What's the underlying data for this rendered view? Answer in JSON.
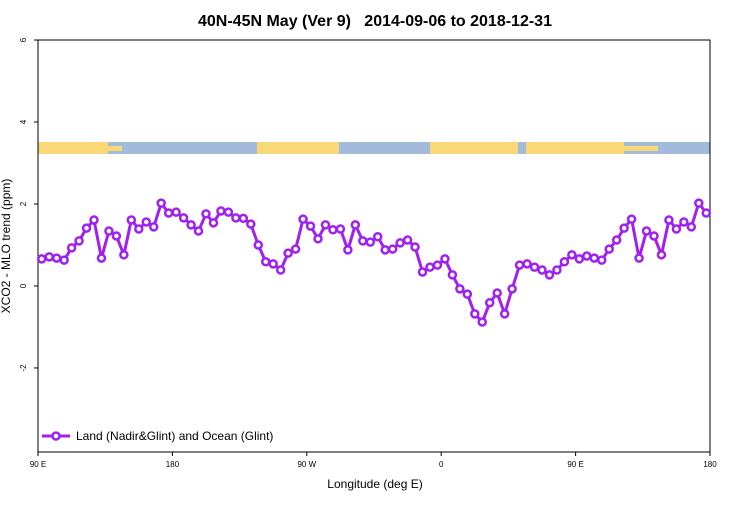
{
  "chart_data": {
    "type": "line",
    "title": "40N-45N May (Ver 9)   2014-09-06 to 2018-12-31",
    "xlabel": "Longitude (deg E)",
    "ylabel": "XCO2 - MLO trend (ppm)",
    "xlim": [
      90,
      540
    ],
    "ylim": [
      -4.05,
      6
    ],
    "xticks": [
      {
        "value": 90,
        "label": "90 E"
      },
      180,
      {
        "value": 270,
        "label": "90 W"
      },
      {
        "value": 360,
        "label": "0"
      },
      {
        "value": 450,
        "label": "90 E"
      },
      {
        "value": 540,
        "label": "180"
      }
    ],
    "yticks": [
      -2,
      0,
      2,
      4,
      6
    ],
    "legend": "bottom-left",
    "x": [
      92.5,
      97.5,
      102.5,
      107.5,
      112.5,
      117.5,
      122.5,
      127.5,
      132.5,
      137.5,
      142.5,
      147.5,
      152.5,
      157.5,
      162.5,
      167.5,
      172.5,
      177.5,
      182.5,
      187.5,
      192.5,
      197.5,
      202.5,
      207.5,
      212.5,
      217.5,
      222.5,
      227.5,
      232.5,
      237.5,
      242.5,
      247.5,
      252.5,
      257.5,
      262.5,
      267.5,
      272.5,
      277.5,
      282.5,
      287.5,
      292.5,
      297.5,
      302.5,
      307.5,
      312.5,
      317.5,
      322.5,
      327.5,
      332.5,
      337.5,
      342.5,
      347.5,
      352.5,
      357.5,
      362.5,
      367.5,
      372.5,
      377.5,
      382.5,
      387.5,
      392.5,
      397.5,
      402.5,
      407.5,
      412.5,
      417.5,
      422.5,
      427.5,
      432.5,
      437.5,
      442.5,
      447.5,
      452.5,
      457.5,
      462.5,
      467.5,
      472.5,
      477.5,
      482.5,
      487.5,
      492.5,
      497.5,
      502.5,
      507.5,
      512.5,
      517.5,
      522.5,
      527.5,
      532.5,
      537.5
    ],
    "series": [
      {
        "name": "Land (Nadir&Glint) and Ocean (Glint)",
        "color": "#a020f0",
        "values": [
          0.66,
          0.71,
          0.68,
          0.63,
          0.93,
          1.1,
          1.41,
          1.61,
          0.68,
          1.34,
          1.22,
          0.76,
          1.61,
          1.39,
          1.56,
          1.44,
          2.02,
          1.78,
          1.8,
          1.66,
          1.49,
          1.34,
          1.76,
          1.54,
          1.83,
          1.8,
          1.66,
          1.65,
          1.51,
          1.0,
          0.59,
          0.54,
          0.39,
          0.8,
          0.9,
          1.63,
          1.46,
          1.15,
          1.49,
          1.37,
          1.39,
          0.88,
          1.49,
          1.1,
          1.07,
          1.2,
          0.88,
          0.9,
          1.05,
          1.12,
          0.95,
          0.34,
          0.46,
          0.51,
          0.66,
          0.27,
          -0.07,
          -0.2,
          -0.68,
          -0.88,
          -0.41,
          -0.17,
          -0.68,
          -0.07,
          0.51,
          0.54,
          0.46,
          0.39,
          0.27,
          0.39,
          0.59,
          0.76,
          0.66,
          0.73,
          0.68,
          0.63,
          0.9,
          1.12,
          1.41,
          1.63,
          0.68,
          1.34,
          1.22,
          0.76,
          1.61,
          1.39,
          1.56,
          1.44,
          2.02,
          1.78
        ]
      }
    ]
  }
}
